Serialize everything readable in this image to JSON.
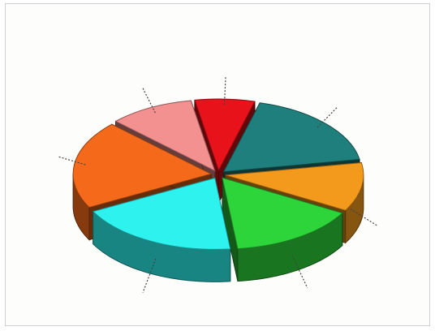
{
  "chart_data": {
    "type": "pie",
    "style": "3d-exploded",
    "title": "",
    "legend": "none",
    "labels_legible": false,
    "slices": [
      {
        "label": "",
        "value": 7,
        "color": "#e8121b"
      },
      {
        "label": "",
        "value": 18,
        "color": "#1f7f7c"
      },
      {
        "label": "",
        "value": 11,
        "color": "#f39a1c"
      },
      {
        "label": "",
        "value": 15,
        "color": "#2ed53a"
      },
      {
        "label": "",
        "value": 19,
        "color": "#2ef2ee"
      },
      {
        "label": "",
        "value": 20,
        "color": "#f46a1a"
      },
      {
        "label": "",
        "value": 10,
        "color": "#f39090"
      }
    ]
  }
}
